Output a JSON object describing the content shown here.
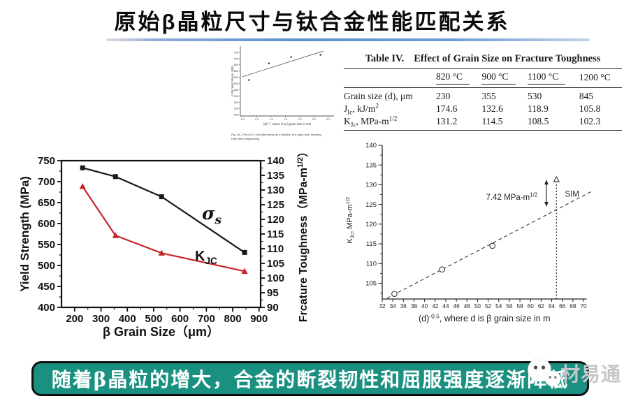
{
  "title": "原始β晶粒尺寸与钛合金性能匹配关系",
  "banner": {
    "text": "随着β晶粒的增大，合金的断裂韧性和屈服强度逐渐降低",
    "bg_color": "#199080"
  },
  "watermark": {
    "text": "材易通",
    "icon": "wechat-icon"
  },
  "colors": {
    "accent_red": "#c9252b",
    "series_black": "#1a1a1a",
    "banner_teal": "#199080",
    "divider_blue": "#5b8fce"
  },
  "table": {
    "caption_label": "Table IV.",
    "caption_text": "Effect of Grain Size on Fracture Toughness",
    "col_headers": [
      "",
      "820 °C",
      "900 °C",
      "1100 °C",
      "1200 °C"
    ],
    "rows": [
      {
        "label": "Grain size (d), μm",
        "values": [
          "230",
          "355",
          "530",
          "845"
        ]
      },
      {
        "label": "J_{Ic}, kJ/m^{2}",
        "values": [
          "174.6",
          "132.6",
          "118.9",
          "105.8"
        ]
      },
      {
        "label": "K_{Jc}, MPa-m^{1/2}",
        "values": [
          "131.2",
          "114.5",
          "108.5",
          "102.3"
        ]
      }
    ]
  },
  "chart_data": [
    {
      "id": "hall-petch-small",
      "type": "scatter",
      "title": "",
      "xlabel": "(d)^{-1/2}, where d is β grain size in mm",
      "ylabel": "0.2% Yield Stress, MPa",
      "xlim": [
        0.97,
        2.28
      ],
      "ylim": [
        240,
        800
      ],
      "xticks": [
        1.0,
        1.2,
        1.4,
        1.6,
        1.8,
        2.0,
        2.2
      ],
      "yticks": [
        250,
        300,
        350,
        400,
        450,
        500,
        550,
        600,
        650,
        700,
        750
      ],
      "points": [
        [
          1.09,
          528
        ],
        [
          1.37,
          662
        ],
        [
          1.68,
          712
        ],
        [
          2.09,
          730
        ]
      ],
      "fit_line": [
        [
          1.0,
          555
        ],
        [
          2.13,
          760
        ]
      ],
      "caption_lines": [
        "Fig. 14—Plot of 0.2 pct yield stress as a function of β grain size, showing",
        "Hall-Petch relationship."
      ]
    },
    {
      "id": "strength-toughness",
      "type": "line",
      "categories": [
        230,
        355,
        530,
        845
      ],
      "series": [
        {
          "name": "σ_{s}",
          "axis": "left",
          "marker": "square",
          "color": "#1a1a1a",
          "values": [
            733,
            712,
            664,
            531
          ]
        },
        {
          "name": "K_{JC}",
          "axis": "right",
          "marker": "triangle",
          "color": "#c9252b",
          "values": [
            131.2,
            114.5,
            108.5,
            102.3
          ]
        }
      ],
      "xlabel": "β Grain Size（μm）",
      "ylabel_left": "Yield Strength (MPa)",
      "ylabel_right": "Frcature Toughness（MPa-m^{1/2}）",
      "xlim": [
        150,
        906
      ],
      "ylim_left": [
        400,
        750
      ],
      "ylim_right": [
        90,
        140
      ],
      "xticks": [
        200,
        300,
        400,
        500,
        600,
        700,
        800,
        900
      ],
      "yticks_left": [
        400,
        450,
        500,
        550,
        600,
        650,
        700,
        750
      ],
      "yticks_right": [
        90,
        95,
        100,
        105,
        110,
        115,
        120,
        125,
        130,
        135,
        140
      ],
      "legend_position": "inline"
    },
    {
      "id": "kjc-hall-petch",
      "type": "scatter",
      "xlabel": "(d)^{-0.5}, where d is β grain size in m",
      "ylabel": "K_{Jc}, MPa-m^{1/2}",
      "xlim": [
        31.6,
        72
      ],
      "ylim": [
        101,
        140
      ],
      "xticks": [
        32,
        34,
        36,
        38,
        40,
        42,
        44,
        46,
        48,
        50,
        52,
        54,
        56,
        58,
        60,
        62,
        64,
        66,
        68,
        70
      ],
      "yticks": [
        105,
        110,
        115,
        120,
        125,
        130,
        135,
        140
      ],
      "trend_line": [
        [
          32.9,
          101.2
        ],
        [
          71.8,
          128.5
        ]
      ],
      "circle_points": [
        [
          34.3,
          102.3
        ],
        [
          43.3,
          108.5
        ],
        [
          52.8,
          114.5
        ]
      ],
      "triangle_point": [
        64.9,
        131.3
      ],
      "vline_x": 64.9,
      "arrow": {
        "x": 63.0,
        "y1": 124.4,
        "y2": 131.3
      },
      "annotation": "7.42 MPa-m^{1/2}",
      "sim_label": "SIM"
    }
  ]
}
